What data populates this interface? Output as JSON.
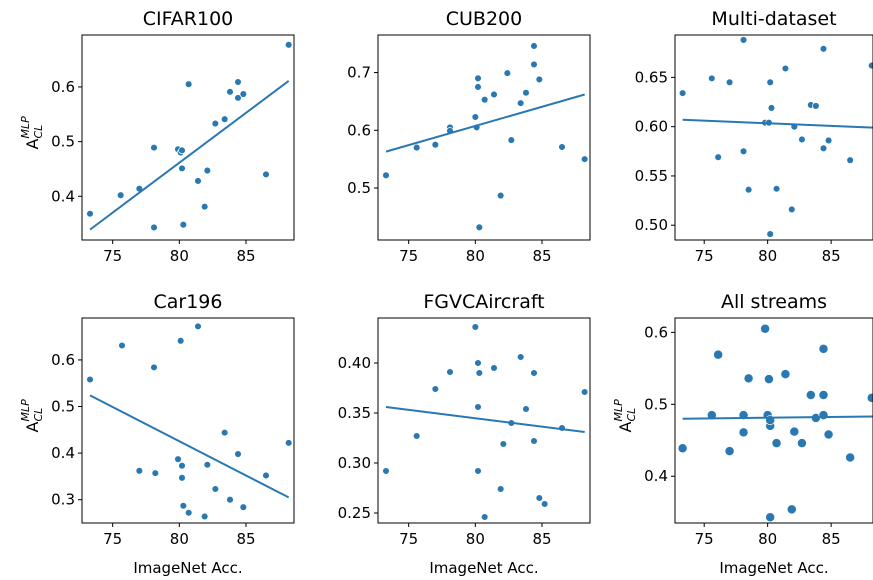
{
  "style": {
    "series_color": "#2a78b2",
    "axis_color": "#000000"
  },
  "chart_data": [
    {
      "type": "scatter",
      "title": "CIFAR100",
      "xlabel": "",
      "ylabel": {
        "main": "A",
        "sup": "MLP",
        "sub": "CL"
      },
      "xlim": [
        72.7,
        88.6
      ],
      "ylim": [
        0.32,
        0.695
      ],
      "xticks": [
        75,
        80,
        85
      ],
      "yticks": [
        0.4,
        0.5,
        0.6
      ],
      "points": [
        [
          73.3,
          0.368
        ],
        [
          75.6,
          0.402
        ],
        [
          77.0,
          0.414
        ],
        [
          78.1,
          0.489
        ],
        [
          78.1,
          0.343
        ],
        [
          79.9,
          0.486
        ],
        [
          80.1,
          0.48
        ],
        [
          80.2,
          0.484
        ],
        [
          80.2,
          0.451
        ],
        [
          80.3,
          0.348
        ],
        [
          80.7,
          0.605
        ],
        [
          81.4,
          0.428
        ],
        [
          81.9,
          0.381
        ],
        [
          82.1,
          0.447
        ],
        [
          82.7,
          0.533
        ],
        [
          83.4,
          0.541
        ],
        [
          83.8,
          0.591
        ],
        [
          84.4,
          0.609
        ],
        [
          84.4,
          0.58
        ],
        [
          84.8,
          0.587
        ],
        [
          86.5,
          0.44
        ],
        [
          88.2,
          0.677
        ]
      ],
      "fit": {
        "x": [
          73.3,
          88.2
        ],
        "y": [
          0.339,
          0.611
        ]
      }
    },
    {
      "type": "scatter",
      "title": "CUB200",
      "xlabel": "",
      "ylabel": null,
      "xlim": [
        72.7,
        88.6
      ],
      "ylim": [
        0.41,
        0.765
      ],
      "xticks": [
        75,
        80,
        85
      ],
      "yticks": [
        0.5,
        0.6,
        0.7
      ],
      "points": [
        [
          73.3,
          0.522
        ],
        [
          75.6,
          0.57
        ],
        [
          77.0,
          0.575
        ],
        [
          78.1,
          0.605
        ],
        [
          78.1,
          0.599
        ],
        [
          80.0,
          0.623
        ],
        [
          80.1,
          0.605
        ],
        [
          80.2,
          0.69
        ],
        [
          80.2,
          0.675
        ],
        [
          80.3,
          0.432
        ],
        [
          80.7,
          0.653
        ],
        [
          81.4,
          0.662
        ],
        [
          81.9,
          0.487
        ],
        [
          82.4,
          0.699
        ],
        [
          82.7,
          0.583
        ],
        [
          83.4,
          0.647
        ],
        [
          83.8,
          0.665
        ],
        [
          84.4,
          0.746
        ],
        [
          84.4,
          0.714
        ],
        [
          84.8,
          0.688
        ],
        [
          86.5,
          0.571
        ],
        [
          88.2,
          0.55
        ]
      ],
      "fit": {
        "x": [
          73.3,
          88.2
        ],
        "y": [
          0.563,
          0.662
        ]
      }
    },
    {
      "type": "scatter",
      "title": "Multi-dataset",
      "xlabel": "",
      "ylabel": null,
      "xlim": [
        72.7,
        88.3
      ],
      "ylim": [
        0.485,
        0.693
      ],
      "xticks": [
        75,
        80,
        85
      ],
      "yticks": [
        0.5,
        0.55,
        0.6,
        0.65
      ],
      "points": [
        [
          73.3,
          0.634
        ],
        [
          75.6,
          0.649
        ],
        [
          76.1,
          0.569
        ],
        [
          77.0,
          0.645
        ],
        [
          78.1,
          0.575
        ],
        [
          78.1,
          0.688
        ],
        [
          78.5,
          0.536
        ],
        [
          79.8,
          0.604
        ],
        [
          80.1,
          0.604
        ],
        [
          80.2,
          0.645
        ],
        [
          80.3,
          0.619
        ],
        [
          80.2,
          0.491
        ],
        [
          80.7,
          0.537
        ],
        [
          81.4,
          0.659
        ],
        [
          81.9,
          0.516
        ],
        [
          82.1,
          0.6
        ],
        [
          82.7,
          0.587
        ],
        [
          83.4,
          0.622
        ],
        [
          83.8,
          0.621
        ],
        [
          84.4,
          0.679
        ],
        [
          84.4,
          0.578
        ],
        [
          84.8,
          0.586
        ],
        [
          86.5,
          0.566
        ],
        [
          88.2,
          0.662
        ]
      ],
      "fit": {
        "x": [
          73.3,
          88.3
        ],
        "y": [
          0.607,
          0.599
        ]
      }
    },
    {
      "type": "scatter",
      "title": "Car196",
      "xlabel": "ImageNet Acc.",
      "ylabel": {
        "main": "A",
        "sup": "MLP",
        "sub": "CL"
      },
      "xlim": [
        72.7,
        88.6
      ],
      "ylim": [
        0.25,
        0.69
      ],
      "xticks": [
        75,
        80,
        85
      ],
      "yticks": [
        0.3,
        0.4,
        0.5,
        0.6
      ],
      "points": [
        [
          73.3,
          0.558
        ],
        [
          75.7,
          0.631
        ],
        [
          77.0,
          0.362
        ],
        [
          78.1,
          0.584
        ],
        [
          78.2,
          0.357
        ],
        [
          79.9,
          0.387
        ],
        [
          80.1,
          0.641
        ],
        [
          80.2,
          0.373
        ],
        [
          80.2,
          0.347
        ],
        [
          80.3,
          0.287
        ],
        [
          80.7,
          0.272
        ],
        [
          81.4,
          0.672
        ],
        [
          81.9,
          0.264
        ],
        [
          82.1,
          0.375
        ],
        [
          82.7,
          0.323
        ],
        [
          83.4,
          0.444
        ],
        [
          83.8,
          0.3
        ],
        [
          84.4,
          0.398
        ],
        [
          84.8,
          0.284
        ],
        [
          86.5,
          0.352
        ],
        [
          88.2,
          0.422
        ]
      ],
      "fit": {
        "x": [
          73.3,
          88.2
        ],
        "y": [
          0.524,
          0.305
        ]
      }
    },
    {
      "type": "scatter",
      "title": "FGVCAircraft",
      "xlabel": "ImageNet Acc.",
      "ylabel": null,
      "xlim": [
        72.7,
        88.6
      ],
      "ylim": [
        0.24,
        0.445
      ],
      "xticks": [
        75,
        80,
        85
      ],
      "yticks": [
        0.25,
        0.3,
        0.35,
        0.4
      ],
      "points": [
        [
          73.3,
          0.292
        ],
        [
          75.6,
          0.327
        ],
        [
          77.0,
          0.374
        ],
        [
          78.1,
          0.391
        ],
        [
          80.0,
          0.436
        ],
        [
          80.2,
          0.4
        ],
        [
          80.2,
          0.356
        ],
        [
          80.2,
          0.292
        ],
        [
          80.3,
          0.39
        ],
        [
          80.7,
          0.246
        ],
        [
          81.4,
          0.395
        ],
        [
          81.9,
          0.274
        ],
        [
          82.1,
          0.319
        ],
        [
          82.7,
          0.34
        ],
        [
          83.4,
          0.406
        ],
        [
          83.8,
          0.354
        ],
        [
          84.4,
          0.39
        ],
        [
          84.4,
          0.322
        ],
        [
          84.8,
          0.265
        ],
        [
          85.2,
          0.259
        ],
        [
          86.5,
          0.335
        ],
        [
          88.2,
          0.371
        ]
      ],
      "fit": {
        "x": [
          73.3,
          88.2
        ],
        "y": [
          0.356,
          0.331
        ]
      }
    },
    {
      "type": "scatter",
      "title": "All streams",
      "xlabel": "ImageNet Acc.",
      "ylabel": {
        "main": "A",
        "sup": "MLP",
        "sub": "CL"
      },
      "xlim": [
        72.7,
        88.3
      ],
      "ylim": [
        0.335,
        0.62
      ],
      "xticks": [
        75,
        80,
        85
      ],
      "yticks": [
        0.4,
        0.5,
        0.6
      ],
      "points": [
        [
          73.3,
          0.439
        ],
        [
          75.6,
          0.485
        ],
        [
          76.1,
          0.569
        ],
        [
          77.0,
          0.435
        ],
        [
          78.1,
          0.461
        ],
        [
          78.1,
          0.485
        ],
        [
          78.5,
          0.536
        ],
        [
          79.8,
          0.605
        ],
        [
          80.0,
          0.485
        ],
        [
          80.1,
          0.535
        ],
        [
          80.2,
          0.47
        ],
        [
          80.2,
          0.478
        ],
        [
          80.2,
          0.343
        ],
        [
          80.7,
          0.446
        ],
        [
          81.4,
          0.542
        ],
        [
          81.9,
          0.354
        ],
        [
          82.1,
          0.462
        ],
        [
          82.7,
          0.446
        ],
        [
          83.4,
          0.513
        ],
        [
          83.8,
          0.481
        ],
        [
          84.4,
          0.577
        ],
        [
          84.4,
          0.513
        ],
        [
          84.4,
          0.485
        ],
        [
          84.8,
          0.458
        ],
        [
          86.5,
          0.426
        ],
        [
          88.2,
          0.509
        ]
      ],
      "fit": {
        "x": [
          73.3,
          88.3
        ],
        "y": [
          0.48,
          0.483
        ]
      }
    }
  ]
}
